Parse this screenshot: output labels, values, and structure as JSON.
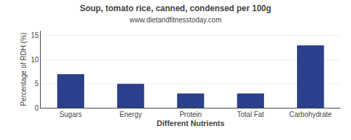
{
  "chart_data": {
    "type": "bar",
    "title": "Soup, tomato rice, canned, condensed per 100g",
    "subtitle": "www.dietandfitnesstoday.com",
    "xlabel": "Different Nutrients",
    "ylabel": "Percentage of RDH (%)",
    "categories": [
      "Sugars",
      "Energy",
      "Protein",
      "Total Fat",
      "Carbohydrate"
    ],
    "values": [
      7.0,
      5.0,
      3.0,
      3.0,
      13.0
    ],
    "color": "#2b3f8c",
    "ylim": [
      0,
      16
    ],
    "yticks": [
      0,
      5,
      10,
      15
    ],
    "grid": true
  }
}
